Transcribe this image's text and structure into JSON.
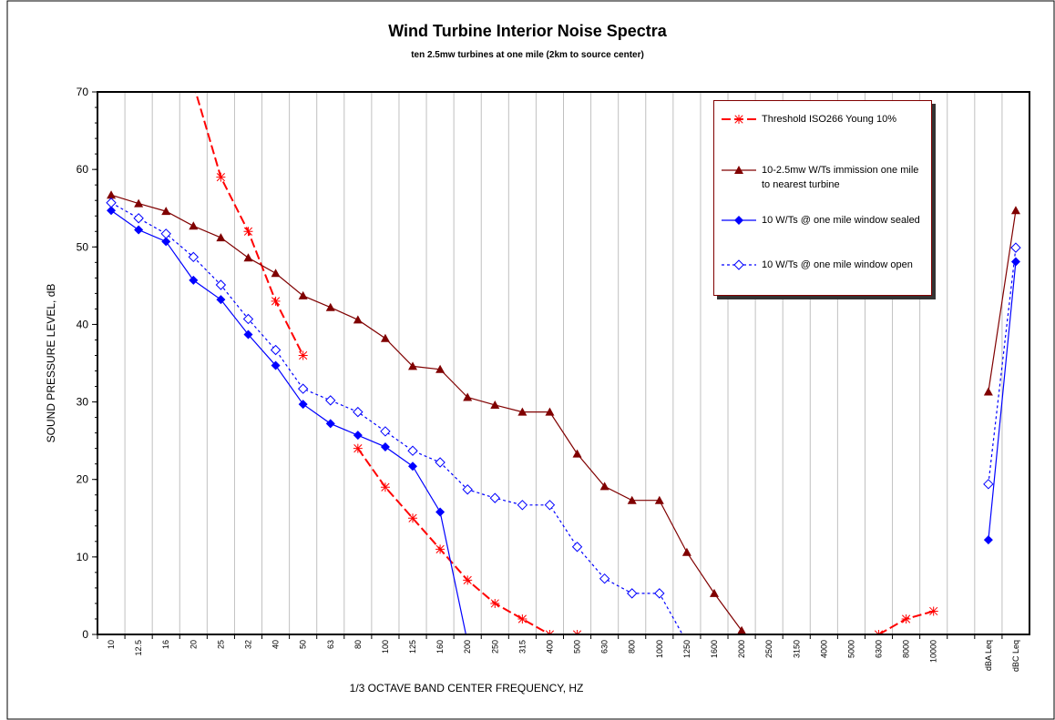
{
  "chart_data": {
    "type": "line",
    "title": "Wind Turbine Interior Noise Spectra",
    "subtitle": "ten 2.5mw turbines at one mile (2km to source center)",
    "ylabel": "SOUND PRESSURE LEVEL, dB",
    "xlabel": "1/3 OCTAVE BAND CENTER FREQUENCY, HZ",
    "categories": [
      "10",
      "12.5",
      "16",
      "20",
      "25",
      "32",
      "40",
      "50",
      "63",
      "80",
      "100",
      "125",
      "160",
      "200",
      "250",
      "315",
      "400",
      "500",
      "630",
      "800",
      "1000",
      "1250",
      "1600",
      "2000",
      "2500",
      "3150",
      "4000",
      "5000",
      "6300",
      "8000",
      "10000",
      null,
      "dBA Leq",
      "dBC Leq"
    ],
    "ylim": [
      0,
      70
    ],
    "yticks": [
      0,
      10,
      20,
      30,
      40,
      50,
      60,
      70
    ],
    "grid": true,
    "series": [
      {
        "name": "Threshold ISO266 Young 10%",
        "color": "#ff0000",
        "marker": "asterisk",
        "dash": "dashed",
        "values": [
          null,
          null,
          null,
          71,
          59,
          52,
          43,
          36,
          null,
          24,
          19,
          15,
          11,
          7,
          4,
          2,
          0,
          0,
          -2,
          null,
          null,
          null,
          null,
          null,
          null,
          null,
          null,
          null,
          0,
          2,
          3,
          null,
          null,
          null
        ]
      },
      {
        "name": "10-2.5mw W/Ts immission one mile to nearest turbine",
        "color": "#800000",
        "marker": "triangle",
        "dash": "solid",
        "values": [
          56.7,
          55.6,
          54.6,
          52.7,
          51.2,
          48.6,
          46.6,
          43.7,
          42.2,
          40.6,
          38.2,
          34.6,
          34.2,
          30.6,
          29.6,
          28.7,
          28.7,
          23.3,
          19.1,
          17.3,
          17.3,
          10.6,
          5.3,
          0.5,
          null,
          null,
          null,
          null,
          null,
          null,
          null,
          null,
          31.3,
          54.7
        ]
      },
      {
        "name": "10 W/Ts @ one mile window sealed",
        "color": "#0000ff",
        "marker": "diamond",
        "dash": "solid",
        "values": [
          54.7,
          52.2,
          50.7,
          45.7,
          43.2,
          38.7,
          34.7,
          29.7,
          27.2,
          25.7,
          24.2,
          21.7,
          15.8,
          -1,
          null,
          null,
          null,
          null,
          null,
          null,
          null,
          null,
          null,
          null,
          null,
          null,
          null,
          null,
          null,
          null,
          null,
          null,
          12.2,
          48.1
        ]
      },
      {
        "name": "10 W/Ts @ one mile window open",
        "color": "#0000ff",
        "marker": "diamond-open",
        "dash": "dotted",
        "values": [
          55.7,
          53.7,
          51.7,
          48.7,
          45.1,
          40.7,
          36.7,
          31.7,
          30.2,
          28.7,
          26.2,
          23.7,
          22.2,
          18.7,
          17.6,
          16.7,
          16.7,
          11.3,
          7.2,
          5.3,
          5.3,
          -1,
          null,
          null,
          null,
          null,
          null,
          null,
          null,
          null,
          null,
          null,
          19.4,
          49.9
        ]
      }
    ]
  }
}
